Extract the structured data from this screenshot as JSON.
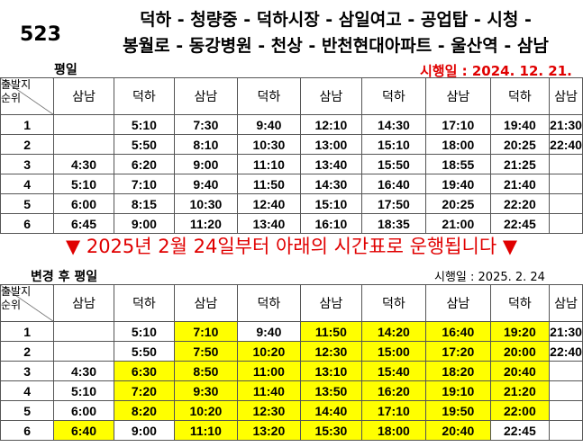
{
  "header": {
    "route_number": "523",
    "stops_line1": "덕하 - 청량중 - 덕하시장 - 삼일여고 - 공업탑 - 시청 -",
    "stops_line2": "봉월로 - 동강병원 - 천상 - 반천현대아파트 - 울산역 - 삼남"
  },
  "section1": {
    "label": "평일",
    "effective_date": "시행일 : 2024. 12. 21.",
    "corner_top": "출발지",
    "corner_bottom": "순위",
    "columns": [
      "삼남",
      "덕하",
      "삼남",
      "덕하",
      "삼남",
      "덕하",
      "삼남",
      "덕하",
      "삼남"
    ],
    "rows": [
      {
        "rank": "1",
        "times": [
          "",
          "5:10",
          "7:30",
          "9:40",
          "12:10",
          "14:30",
          "17:10",
          "19:40",
          "21:30"
        ]
      },
      {
        "rank": "2",
        "times": [
          "",
          "5:50",
          "8:10",
          "10:30",
          "13:00",
          "15:10",
          "18:00",
          "20:25",
          "22:40"
        ]
      },
      {
        "rank": "3",
        "times": [
          "4:30",
          "6:20",
          "9:00",
          "11:10",
          "13:40",
          "15:50",
          "18:55",
          "21:25",
          ""
        ]
      },
      {
        "rank": "4",
        "times": [
          "5:10",
          "7:10",
          "9:40",
          "11:50",
          "14:30",
          "16:40",
          "19:40",
          "21:40",
          ""
        ]
      },
      {
        "rank": "5",
        "times": [
          "6:00",
          "8:15",
          "10:30",
          "12:40",
          "15:10",
          "17:50",
          "20:25",
          "22:20",
          ""
        ]
      },
      {
        "rank": "6",
        "times": [
          "6:45",
          "9:00",
          "11:20",
          "13:40",
          "16:10",
          "18:35",
          "21:00",
          "22:45",
          ""
        ]
      }
    ]
  },
  "notice": {
    "text": "2025년 2월 24일부터 아래의 시간표로 운행됩니다",
    "left_marker": "▼",
    "right_marker": "▼"
  },
  "section2": {
    "label": "변경 후 평일",
    "effective_date": "시행일 : 2025. 2. 24",
    "corner_top": "출발지",
    "corner_bottom": "순위",
    "columns": [
      "삼남",
      "덕하",
      "삼남",
      "덕하",
      "삼남",
      "덕하",
      "삼남",
      "덕하",
      "삼남"
    ],
    "highlight_color": "#ffff00",
    "rows": [
      {
        "rank": "1",
        "times": [
          "",
          "5:10",
          "7:10",
          "9:40",
          "11:50",
          "14:20",
          "16:40",
          "19:20",
          "21:30"
        ],
        "highlight": [
          false,
          false,
          true,
          false,
          true,
          true,
          true,
          true,
          false
        ]
      },
      {
        "rank": "2",
        "times": [
          "",
          "5:50",
          "7:50",
          "10:20",
          "12:30",
          "15:00",
          "17:20",
          "20:00",
          "22:40"
        ],
        "highlight": [
          false,
          false,
          true,
          true,
          true,
          true,
          true,
          true,
          false
        ]
      },
      {
        "rank": "3",
        "times": [
          "4:30",
          "6:30",
          "8:50",
          "11:00",
          "13:10",
          "15:40",
          "18:20",
          "20:40",
          ""
        ],
        "highlight": [
          false,
          true,
          true,
          true,
          true,
          true,
          true,
          true,
          false
        ]
      },
      {
        "rank": "4",
        "times": [
          "5:10",
          "7:20",
          "9:30",
          "11:40",
          "13:50",
          "16:20",
          "19:10",
          "21:20",
          ""
        ],
        "highlight": [
          false,
          true,
          true,
          true,
          true,
          true,
          true,
          true,
          false
        ]
      },
      {
        "rank": "5",
        "times": [
          "6:00",
          "8:20",
          "10:20",
          "12:30",
          "14:40",
          "17:10",
          "19:50",
          "22:00",
          ""
        ],
        "highlight": [
          false,
          true,
          true,
          true,
          true,
          true,
          true,
          true,
          false
        ]
      },
      {
        "rank": "6",
        "times": [
          "6:40",
          "9:00",
          "11:10",
          "13:20",
          "15:30",
          "18:00",
          "20:40",
          "22:45",
          ""
        ],
        "highlight": [
          true,
          false,
          true,
          true,
          true,
          true,
          true,
          false,
          false
        ]
      }
    ]
  }
}
